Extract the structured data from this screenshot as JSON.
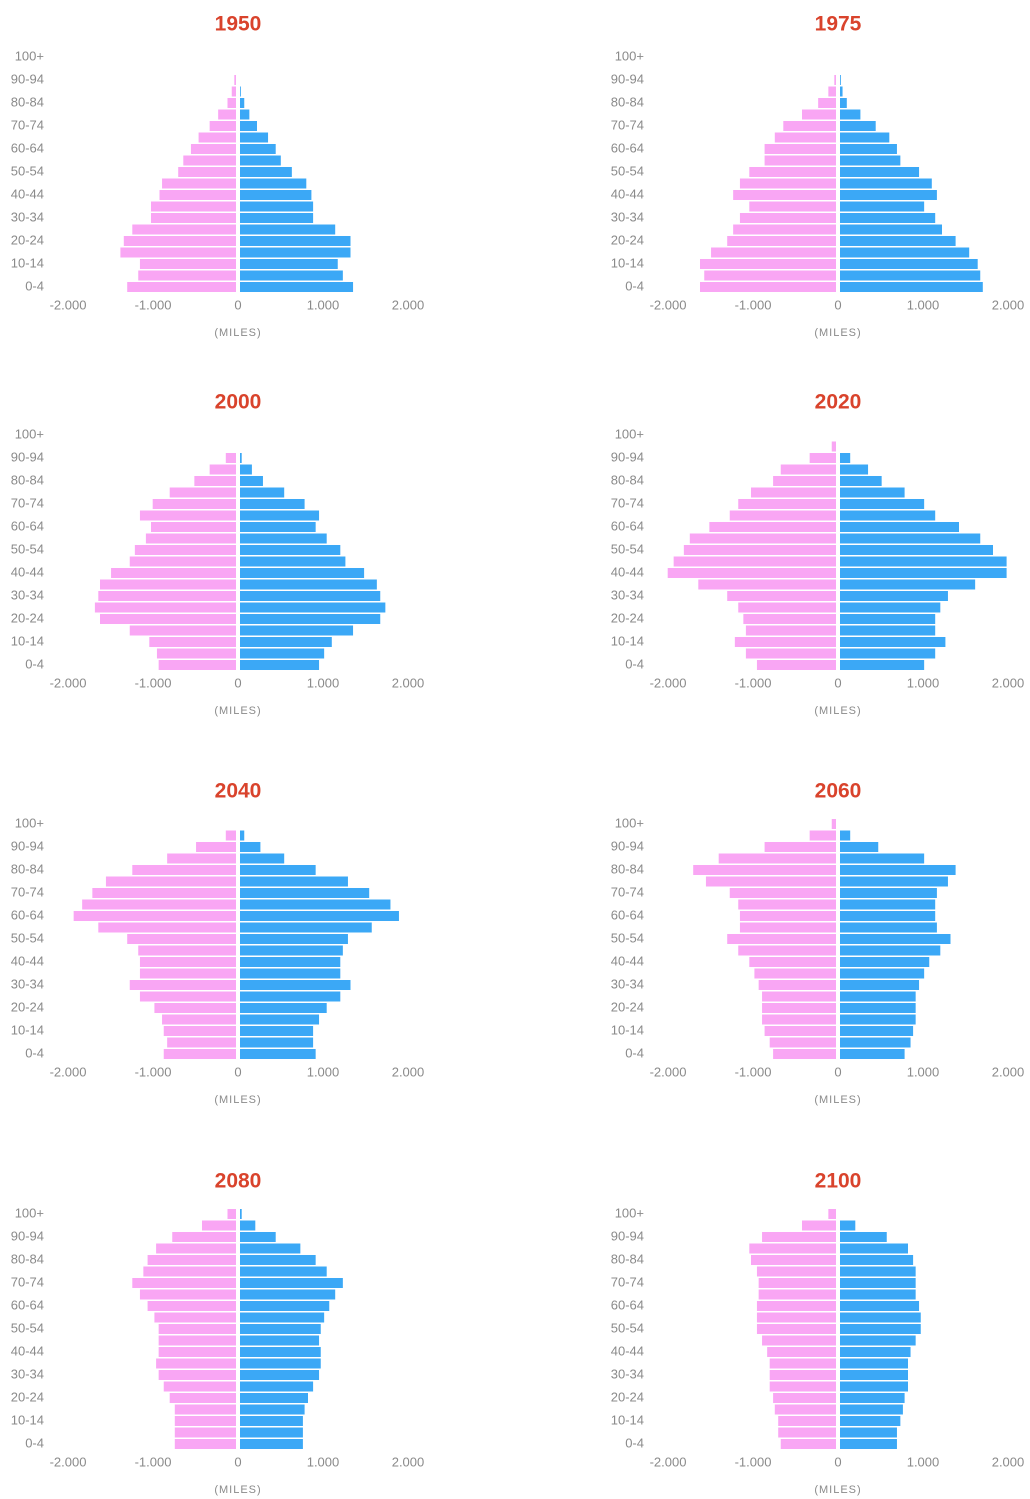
{
  "chart_data": [
    {
      "type": "bar",
      "orientation": "horizontal",
      "title": "1950",
      "xlabel": "(MILES)",
      "categories": [
        "0-4",
        null,
        "10-14",
        null,
        "20-24",
        null,
        "30-34",
        null,
        "40-44",
        null,
        "50-54",
        null,
        "60-64",
        null,
        "70-74",
        null,
        "80-84",
        null,
        "90-94",
        null,
        "100+"
      ],
      "series": [
        {
          "color": "#f9a6f4",
          "values": [
            -1280,
            -1150,
            -1130,
            -1360,
            -1320,
            -1220,
            -1000,
            -1000,
            -900,
            -870,
            -680,
            -620,
            -530,
            -440,
            -310,
            -210,
            -100,
            -50,
            -20,
            0,
            0
          ]
        },
        {
          "color": "#3ba8f6",
          "values": [
            1330,
            1210,
            1150,
            1300,
            1300,
            1120,
            860,
            860,
            840,
            780,
            610,
            480,
            420,
            330,
            200,
            110,
            50,
            10,
            0,
            0,
            0
          ]
        }
      ],
      "xlim": [
        -2000,
        2000
      ],
      "xticks": [
        {
          "value": -2000,
          "label": "-2.000"
        },
        {
          "value": -1000,
          "label": "-1.000"
        },
        0,
        {
          "value": 1000,
          "label": "1.000"
        },
        {
          "value": 2000,
          "label": "2.000"
        }
      ]
    },
    {
      "type": "bar",
      "orientation": "horizontal",
      "title": "1975",
      "xlabel": "(MILES)",
      "categories": [
        "0-4",
        null,
        "10-14",
        null,
        "20-24",
        null,
        "30-34",
        null,
        "40-44",
        null,
        "50-54",
        null,
        "60-64",
        null,
        "70-74",
        null,
        "80-84",
        null,
        "90-94",
        null,
        "100+"
      ],
      "series": [
        {
          "color": "#f9a6f4",
          "values": [
            -1600,
            -1550,
            -1600,
            -1470,
            -1280,
            -1210,
            -1130,
            -1020,
            -1210,
            -1130,
            -1020,
            -840,
            -840,
            -720,
            -620,
            -400,
            -210,
            -90,
            -20,
            0,
            0
          ]
        },
        {
          "color": "#3ba8f6",
          "values": [
            1680,
            1650,
            1620,
            1520,
            1360,
            1200,
            1120,
            990,
            1140,
            1080,
            930,
            710,
            670,
            580,
            420,
            240,
            80,
            30,
            10,
            0,
            0
          ]
        }
      ],
      "xlim": [
        -2000,
        2000
      ],
      "xticks": [
        {
          "value": -2000,
          "label": "-2.000"
        },
        {
          "value": -1000,
          "label": "-1.000"
        },
        0,
        {
          "value": 1000,
          "label": "1.000"
        },
        {
          "value": 2000,
          "label": "2.000"
        }
      ]
    },
    {
      "type": "bar",
      "orientation": "horizontal",
      "title": "2000",
      "xlabel": "(MILES)",
      "categories": [
        "0-4",
        null,
        "10-14",
        null,
        "20-24",
        null,
        "30-34",
        null,
        "40-44",
        null,
        "50-54",
        null,
        "60-64",
        null,
        "70-74",
        null,
        "80-84",
        null,
        "90-94",
        null,
        "100+"
      ],
      "series": [
        {
          "color": "#f9a6f4",
          "values": [
            -910,
            -930,
            -1020,
            -1250,
            -1600,
            -1660,
            -1620,
            -1600,
            -1470,
            -1250,
            -1190,
            -1060,
            -1000,
            -1130,
            -980,
            -780,
            -490,
            -310,
            -120,
            0,
            0
          ]
        },
        {
          "color": "#3ba8f6",
          "values": [
            930,
            990,
            1080,
            1330,
            1650,
            1710,
            1650,
            1610,
            1460,
            1240,
            1180,
            1020,
            890,
            930,
            760,
            520,
            270,
            140,
            20,
            0,
            0
          ]
        }
      ],
      "xlim": [
        -2000,
        2000
      ],
      "xticks": [
        {
          "value": -2000,
          "label": "-2.000"
        },
        {
          "value": -1000,
          "label": "-1.000"
        },
        0,
        {
          "value": 1000,
          "label": "1.000"
        },
        {
          "value": 2000,
          "label": "2.000"
        }
      ]
    },
    {
      "type": "bar",
      "orientation": "horizontal",
      "title": "2020",
      "xlabel": "(MILES)",
      "categories": [
        "0-4",
        null,
        "10-14",
        null,
        "20-24",
        null,
        "30-34",
        null,
        "40-44",
        null,
        "50-54",
        null,
        "60-64",
        null,
        "70-74",
        null,
        "80-84",
        null,
        "90-94",
        null,
        "100+"
      ],
      "series": [
        {
          "color": "#f9a6f4",
          "values": [
            -930,
            -1060,
            -1190,
            -1060,
            -1090,
            -1150,
            -1280,
            -1620,
            -1980,
            -1910,
            -1790,
            -1720,
            -1490,
            -1250,
            -1150,
            -1000,
            -740,
            -650,
            -310,
            -50,
            0
          ]
        },
        {
          "color": "#3ba8f6",
          "values": [
            990,
            1120,
            1240,
            1120,
            1120,
            1180,
            1270,
            1590,
            1960,
            1960,
            1800,
            1650,
            1400,
            1120,
            990,
            760,
            490,
            330,
            120,
            0,
            0
          ]
        }
      ],
      "xlim": [
        -2000,
        2000
      ],
      "xticks": [
        {
          "value": -2000,
          "label": "-2.000"
        },
        {
          "value": -1000,
          "label": "-1.000"
        },
        0,
        {
          "value": 1000,
          "label": "1.000"
        },
        {
          "value": 2000,
          "label": "2.000"
        }
      ]
    },
    {
      "type": "bar",
      "orientation": "horizontal",
      "title": "2040",
      "xlabel": "(MILES)",
      "categories": [
        "0-4",
        null,
        "10-14",
        null,
        "20-24",
        null,
        "30-34",
        null,
        "40-44",
        null,
        "50-54",
        null,
        "60-64",
        null,
        "70-74",
        null,
        "80-84",
        null,
        "90-94",
        null,
        "100+"
      ],
      "series": [
        {
          "color": "#f9a6f4",
          "values": [
            -850,
            -810,
            -850,
            -870,
            -960,
            -1130,
            -1250,
            -1130,
            -1130,
            -1150,
            -1280,
            -1620,
            -1910,
            -1810,
            -1690,
            -1530,
            -1220,
            -810,
            -470,
            -120,
            0
          ]
        },
        {
          "color": "#3ba8f6",
          "values": [
            890,
            860,
            860,
            930,
            1020,
            1180,
            1300,
            1180,
            1180,
            1210,
            1270,
            1550,
            1870,
            1770,
            1520,
            1270,
            890,
            520,
            240,
            50,
            0
          ]
        }
      ],
      "xlim": [
        -2000,
        2000
      ],
      "xticks": [
        {
          "value": -2000,
          "label": "-2.000"
        },
        {
          "value": -1000,
          "label": "-1.000"
        },
        0,
        {
          "value": 1000,
          "label": "1.000"
        },
        {
          "value": 2000,
          "label": "2.000"
        }
      ]
    },
    {
      "type": "bar",
      "orientation": "horizontal",
      "title": "2060",
      "xlabel": "(MILES)",
      "categories": [
        "0-4",
        null,
        "10-14",
        null,
        "20-24",
        null,
        "30-34",
        null,
        "40-44",
        null,
        "50-54",
        null,
        "60-64",
        null,
        "70-74",
        null,
        "80-84",
        null,
        "90-94",
        null,
        "100+"
      ],
      "series": [
        {
          "color": "#f9a6f4",
          "values": [
            -740,
            -780,
            -840,
            -870,
            -870,
            -870,
            -910,
            -960,
            -1020,
            -1150,
            -1280,
            -1130,
            -1130,
            -1150,
            -1250,
            -1530,
            -1680,
            -1380,
            -840,
            -310,
            -50
          ]
        },
        {
          "color": "#3ba8f6",
          "values": [
            760,
            830,
            860,
            890,
            890,
            890,
            930,
            990,
            1050,
            1180,
            1300,
            1140,
            1120,
            1120,
            1140,
            1270,
            1360,
            990,
            450,
            120,
            0
          ]
        }
      ],
      "xlim": [
        -2000,
        2000
      ],
      "xticks": [
        {
          "value": -2000,
          "label": "-2.000"
        },
        {
          "value": -1000,
          "label": "-1.000"
        },
        0,
        {
          "value": 1000,
          "label": "1.000"
        },
        {
          "value": 2000,
          "label": "2.000"
        }
      ]
    },
    {
      "type": "bar",
      "orientation": "horizontal",
      "title": "2080",
      "xlabel": "(MILES)",
      "categories": [
        "0-4",
        null,
        "10-14",
        null,
        "20-24",
        null,
        "30-34",
        null,
        "40-44",
        null,
        "50-54",
        null,
        "60-64",
        null,
        "70-74",
        null,
        "80-84",
        null,
        "90-94",
        null,
        "100+"
      ],
      "series": [
        {
          "color": "#f9a6f4",
          "values": [
            -720,
            -720,
            -720,
            -720,
            -780,
            -850,
            -910,
            -940,
            -910,
            -910,
            -910,
            -960,
            -1040,
            -1130,
            -1220,
            -1090,
            -1040,
            -940,
            -750,
            -400,
            -100
          ]
        },
        {
          "color": "#3ba8f6",
          "values": [
            740,
            740,
            740,
            760,
            800,
            860,
            930,
            950,
            950,
            930,
            950,
            990,
            1050,
            1120,
            1210,
            1020,
            890,
            710,
            420,
            180,
            20
          ]
        }
      ],
      "xlim": [
        -2000,
        2000
      ],
      "xticks": [
        {
          "value": -2000,
          "label": "-2.000"
        },
        {
          "value": -1000,
          "label": "-1.000"
        },
        0,
        {
          "value": 1000,
          "label": "1.000"
        },
        {
          "value": 2000,
          "label": "2.000"
        }
      ]
    },
    {
      "type": "bar",
      "orientation": "horizontal",
      "title": "2100",
      "xlabel": "(MILES)",
      "categories": [
        "0-4",
        null,
        "10-14",
        null,
        "20-24",
        null,
        "30-34",
        null,
        "40-44",
        null,
        "50-54",
        null,
        "60-64",
        null,
        "70-74",
        null,
        "80-84",
        null,
        "90-94",
        null,
        "100+"
      ],
      "series": [
        {
          "color": "#f9a6f4",
          "values": [
            -650,
            -680,
            -680,
            -720,
            -740,
            -780,
            -780,
            -780,
            -810,
            -870,
            -930,
            -930,
            -930,
            -910,
            -910,
            -930,
            -1000,
            -1020,
            -870,
            -400,
            -90
          ]
        },
        {
          "color": "#3ba8f6",
          "values": [
            670,
            670,
            710,
            740,
            760,
            800,
            800,
            800,
            830,
            890,
            950,
            950,
            930,
            890,
            890,
            890,
            860,
            800,
            550,
            180,
            0
          ]
        }
      ],
      "xlim": [
        -2000,
        2000
      ],
      "xticks": [
        {
          "value": -2000,
          "label": "-2.000"
        },
        {
          "value": -1000,
          "label": "-1.000"
        },
        0,
        {
          "value": 1000,
          "label": "1.000"
        },
        {
          "value": 2000,
          "label": "2.000"
        }
      ]
    }
  ]
}
